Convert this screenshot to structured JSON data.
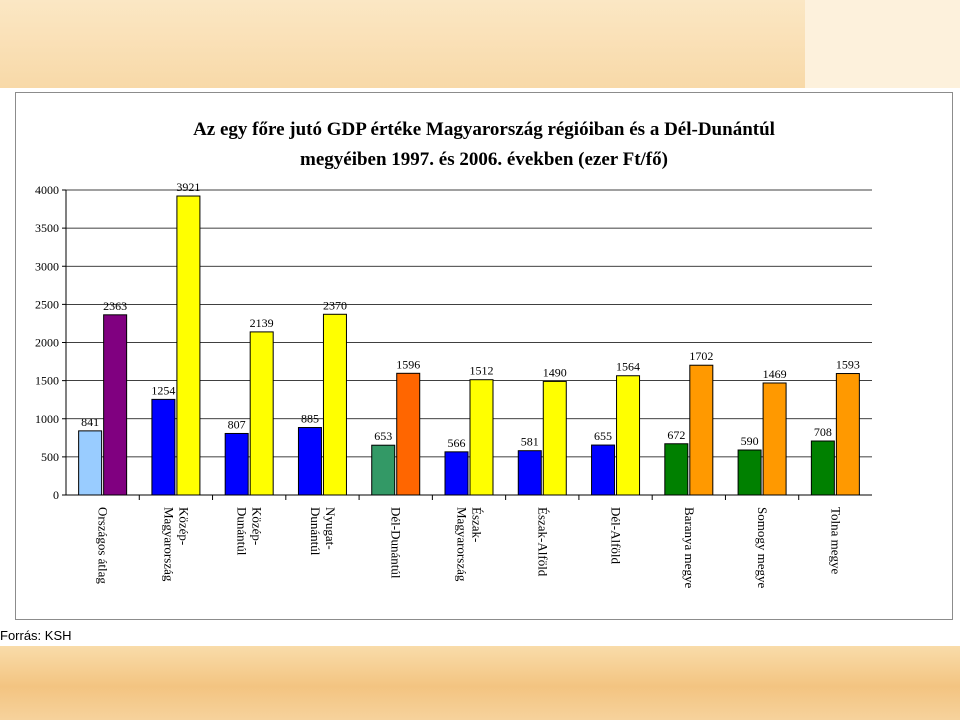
{
  "slide": {
    "source_label": "Forrás: KSH",
    "colors": {
      "top_band": "#f8d9a8",
      "bottom_band": "#f3c481"
    }
  },
  "chart_data": {
    "type": "bar",
    "title_lines": [
      "Az egy főre jutó GDP értéke Magyarország régióiban és a Dél-Dunántúl",
      "megyéiben 1997. és 2006. években (ezer Ft/fő)"
    ],
    "ylim": [
      0,
      4000
    ],
    "yticks": [
      0,
      500,
      1000,
      1500,
      2000,
      2500,
      3000,
      3500,
      4000
    ],
    "grid": true,
    "legend": "none",
    "categories": [
      [
        "Országos átlag"
      ],
      [
        "Közép-",
        "Magyarország"
      ],
      [
        "Közép-",
        "Dunántúl"
      ],
      [
        "Nyugat-",
        "Dunántúl"
      ],
      [
        "Dél-Dunántúl"
      ],
      [
        "Észak-",
        "Magyarország"
      ],
      [
        "Észak-Alföld"
      ],
      [
        "Dél-Alföld"
      ],
      [
        "Baranya megye"
      ],
      [
        "Somogy megye"
      ],
      [
        "Tolna megye"
      ]
    ],
    "series": [
      {
        "values": [
          841,
          1254,
          807,
          885,
          653,
          566,
          581,
          655,
          672,
          590,
          708
        ],
        "colors": [
          "#99ccff",
          "#0000ff",
          "#0000ff",
          "#0000ff",
          "#339966",
          "#0000ff",
          "#0000ff",
          "#0000ff",
          "#008000",
          "#008000",
          "#008000"
        ]
      },
      {
        "values": [
          2363,
          3921,
          2139,
          2370,
          1596,
          1512,
          1490,
          1564,
          1702,
          1469,
          1593
        ],
        "colors": [
          "#800080",
          "#ffff00",
          "#ffff00",
          "#ffff00",
          "#ff6600",
          "#ffff00",
          "#ffff00",
          "#ffff00",
          "#ff9900",
          "#ff9900",
          "#ff9900"
        ]
      }
    ]
  }
}
